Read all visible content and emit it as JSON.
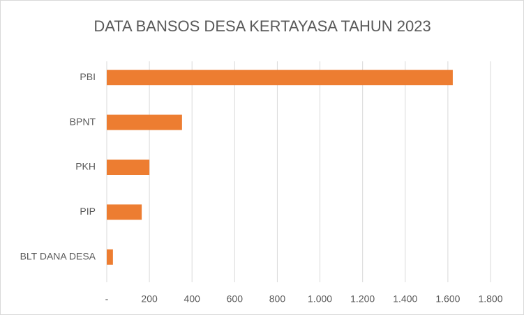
{
  "chart_data": {
    "type": "bar",
    "orientation": "horizontal",
    "title": "DATA BANSOS DESA KERTAYASA TAHUN 2023",
    "categories": [
      "PBI",
      "BPNT",
      "PKH",
      "PIP",
      "BLT DANA DESA"
    ],
    "values": [
      1623,
      353,
      200,
      164,
      29
    ],
    "color": "#ed7d31",
    "xlim": [
      0,
      1800
    ],
    "xticks": [
      {
        "value": 0,
        "label": "-"
      },
      200,
      400,
      600,
      800,
      {
        "value": 1000,
        "label": "1.000"
      },
      {
        "value": 1200,
        "label": "1.200"
      },
      {
        "value": 1400,
        "label": "1.400"
      },
      {
        "value": 1600,
        "label": "1.600"
      },
      {
        "value": 1800,
        "label": "1.800"
      }
    ],
    "grid": true
  }
}
